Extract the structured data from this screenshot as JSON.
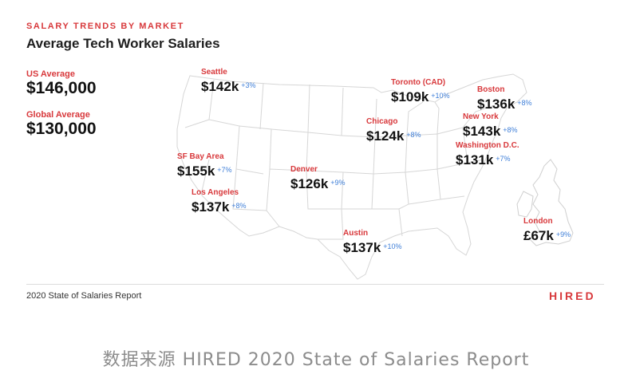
{
  "header": {
    "kicker": "SALARY TRENDS BY MARKET",
    "title": "Average Tech Worker Salaries"
  },
  "averages": [
    {
      "label": "US Average",
      "value": "$146,000"
    },
    {
      "label": "Global Average",
      "value": "$130,000"
    }
  ],
  "markets": [
    {
      "name": "Seattle",
      "salary": "$142k",
      "change": "+3%"
    },
    {
      "name": "Toronto (CAD)",
      "salary": "$109k",
      "change": "+10%"
    },
    {
      "name": "Boston",
      "salary": "$136k",
      "change": "+8%"
    },
    {
      "name": "Chicago",
      "salary": "$124k",
      "change": "+8%"
    },
    {
      "name": "New York",
      "salary": "$143k",
      "change": "+8%"
    },
    {
      "name": "Washington D.C.",
      "salary": "$131k",
      "change": "+7%"
    },
    {
      "name": "SF Bay Area",
      "salary": "$155k",
      "change": "+7%"
    },
    {
      "name": "Denver",
      "salary": "$126k",
      "change": "+9%"
    },
    {
      "name": "Los Angeles",
      "salary": "$137k",
      "change": "+8%"
    },
    {
      "name": "Austin",
      "salary": "$137k",
      "change": "+10%"
    },
    {
      "name": "London",
      "salary": "£67k",
      "change": "+9%"
    }
  ],
  "footer": {
    "report": "2020 State of Salaries Report",
    "logo": "HIRED"
  },
  "caption": "数据来源 HIRED 2020 State of Salaries Report",
  "colors": {
    "accent": "#d8393c",
    "change": "#3f7fd8",
    "map_stroke": "#d6d6d6"
  }
}
